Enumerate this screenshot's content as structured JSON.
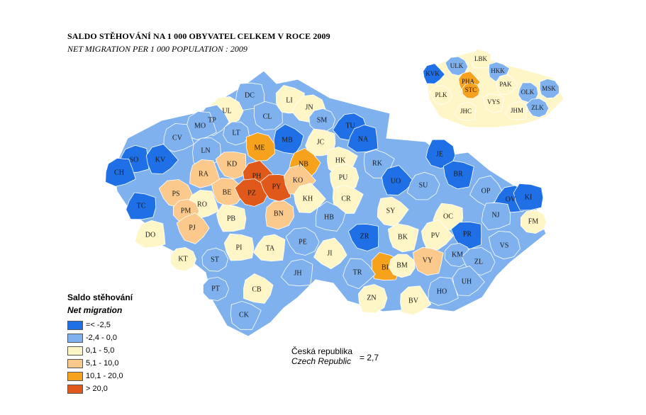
{
  "title_cz": "SALDO STĚHOVÁNÍ  NA 1 000 OBYVATEL CELKEM V ROCE 2009",
  "title_en": "NET MIGRATION PER 1 000 POPULATION : 2009",
  "legend": {
    "title_cz": "Saldo stěhování",
    "title_en": "Net migration",
    "items": [
      {
        "label": "=<  -2,5",
        "color": "#1f6fe6"
      },
      {
        "label": "-2,4 - 0,0",
        "color": "#7eb1ee"
      },
      {
        "label": "0,1 - 5,0",
        "color": "#fff6c8"
      },
      {
        "label": "5,1 - 10,0",
        "color": "#fac98b"
      },
      {
        "label": "10,1 - 20,0",
        "color": "#f7a21c"
      },
      {
        "label": "> 20,0",
        "color": "#e0591b"
      }
    ]
  },
  "country": {
    "name_cz": "Česká republika",
    "name_en": "Czech Republic",
    "value": "=  2,7"
  },
  "districts": [
    {
      "code": "DC",
      "cls": 1
    },
    {
      "code": "LI",
      "cls": 2
    },
    {
      "code": "UL",
      "cls": 2
    },
    {
      "code": "JN",
      "cls": 2
    },
    {
      "code": "TP",
      "cls": 1
    },
    {
      "code": "CL",
      "cls": 1
    },
    {
      "code": "MO",
      "cls": 1
    },
    {
      "code": "SM",
      "cls": 1
    },
    {
      "code": "TU",
      "cls": 0
    },
    {
      "code": "CV",
      "cls": 1
    },
    {
      "code": "LT",
      "cls": 1
    },
    {
      "code": "NA",
      "cls": 0
    },
    {
      "code": "MB",
      "cls": 0
    },
    {
      "code": "ME",
      "cls": 4
    },
    {
      "code": "JC",
      "cls": 2
    },
    {
      "code": "LN",
      "cls": 1
    },
    {
      "code": "SO",
      "cls": 0
    },
    {
      "code": "KV",
      "cls": 0
    },
    {
      "code": "CH",
      "cls": 0
    },
    {
      "code": "KD",
      "cls": 3
    },
    {
      "code": "NB",
      "cls": 4
    },
    {
      "code": "HK",
      "cls": 2
    },
    {
      "code": "RK",
      "cls": 1
    },
    {
      "code": "JE",
      "cls": 0
    },
    {
      "code": "RA",
      "cls": 3
    },
    {
      "code": "PH",
      "cls": 5
    },
    {
      "code": "PU",
      "cls": 2
    },
    {
      "code": "BR",
      "cls": 0
    },
    {
      "code": "UO",
      "cls": 0
    },
    {
      "code": "SU",
      "cls": 1
    },
    {
      "code": "PS",
      "cls": 3
    },
    {
      "code": "BE",
      "cls": 3
    },
    {
      "code": "PZ",
      "cls": 5
    },
    {
      "code": "PY",
      "cls": 5
    },
    {
      "code": "KO",
      "cls": 3
    },
    {
      "code": "OP",
      "cls": 1
    },
    {
      "code": "TC",
      "cls": 0
    },
    {
      "code": "RO",
      "cls": 2
    },
    {
      "code": "KH",
      "cls": 2
    },
    {
      "code": "CR",
      "cls": 2
    },
    {
      "code": "OV",
      "cls": 0
    },
    {
      "code": "KI",
      "cls": 0
    },
    {
      "code": "PM",
      "cls": 3
    },
    {
      "code": "SY",
      "cls": 2
    },
    {
      "code": "NJ",
      "cls": 1
    },
    {
      "code": "BN",
      "cls": 3
    },
    {
      "code": "OC",
      "cls": 2
    },
    {
      "code": "FM",
      "cls": 2
    },
    {
      "code": "PJ",
      "cls": 3
    },
    {
      "code": "PB",
      "cls": 2
    },
    {
      "code": "HB",
      "cls": 1
    },
    {
      "code": "DO",
      "cls": 2
    },
    {
      "code": "ZR",
      "cls": 0
    },
    {
      "code": "PR",
      "cls": 0
    },
    {
      "code": "BK",
      "cls": 2
    },
    {
      "code": "PV",
      "cls": 2
    },
    {
      "code": "VS",
      "cls": 1
    },
    {
      "code": "PE",
      "cls": 1
    },
    {
      "code": "PI",
      "cls": 2
    },
    {
      "code": "TA",
      "cls": 2
    },
    {
      "code": "KM",
      "cls": 1
    },
    {
      "code": "JI",
      "cls": 2
    },
    {
      "code": "KT",
      "cls": 2
    },
    {
      "code": "ST",
      "cls": 1
    },
    {
      "code": "BI",
      "cls": 4
    },
    {
      "code": "BM",
      "cls": 2
    },
    {
      "code": "VY",
      "cls": 3
    },
    {
      "code": "ZL",
      "cls": 1
    },
    {
      "code": "JH",
      "cls": 1
    },
    {
      "code": "TR",
      "cls": 1
    },
    {
      "code": "UH",
      "cls": 1
    },
    {
      "code": "PT",
      "cls": 1
    },
    {
      "code": "CB",
      "cls": 2
    },
    {
      "code": "HO",
      "cls": 1
    },
    {
      "code": "ZN",
      "cls": 2
    },
    {
      "code": "BV",
      "cls": 2
    },
    {
      "code": "CK",
      "cls": 1
    }
  ],
  "regions": [
    {
      "code": "LBK",
      "cls": 2
    },
    {
      "code": "ULK",
      "cls": 1
    },
    {
      "code": "HKK",
      "cls": 1
    },
    {
      "code": "KVK",
      "cls": 0
    },
    {
      "code": "PHA",
      "cls": 4
    },
    {
      "code": "STC",
      "cls": 4
    },
    {
      "code": "PAK",
      "cls": 2
    },
    {
      "code": "OLK",
      "cls": 1
    },
    {
      "code": "MSK",
      "cls": 1
    },
    {
      "code": "PLK",
      "cls": 2
    },
    {
      "code": "VYS",
      "cls": 2
    },
    {
      "code": "JHC",
      "cls": 2
    },
    {
      "code": "JHM",
      "cls": 2
    },
    {
      "code": "ZLK",
      "cls": 1
    }
  ]
}
